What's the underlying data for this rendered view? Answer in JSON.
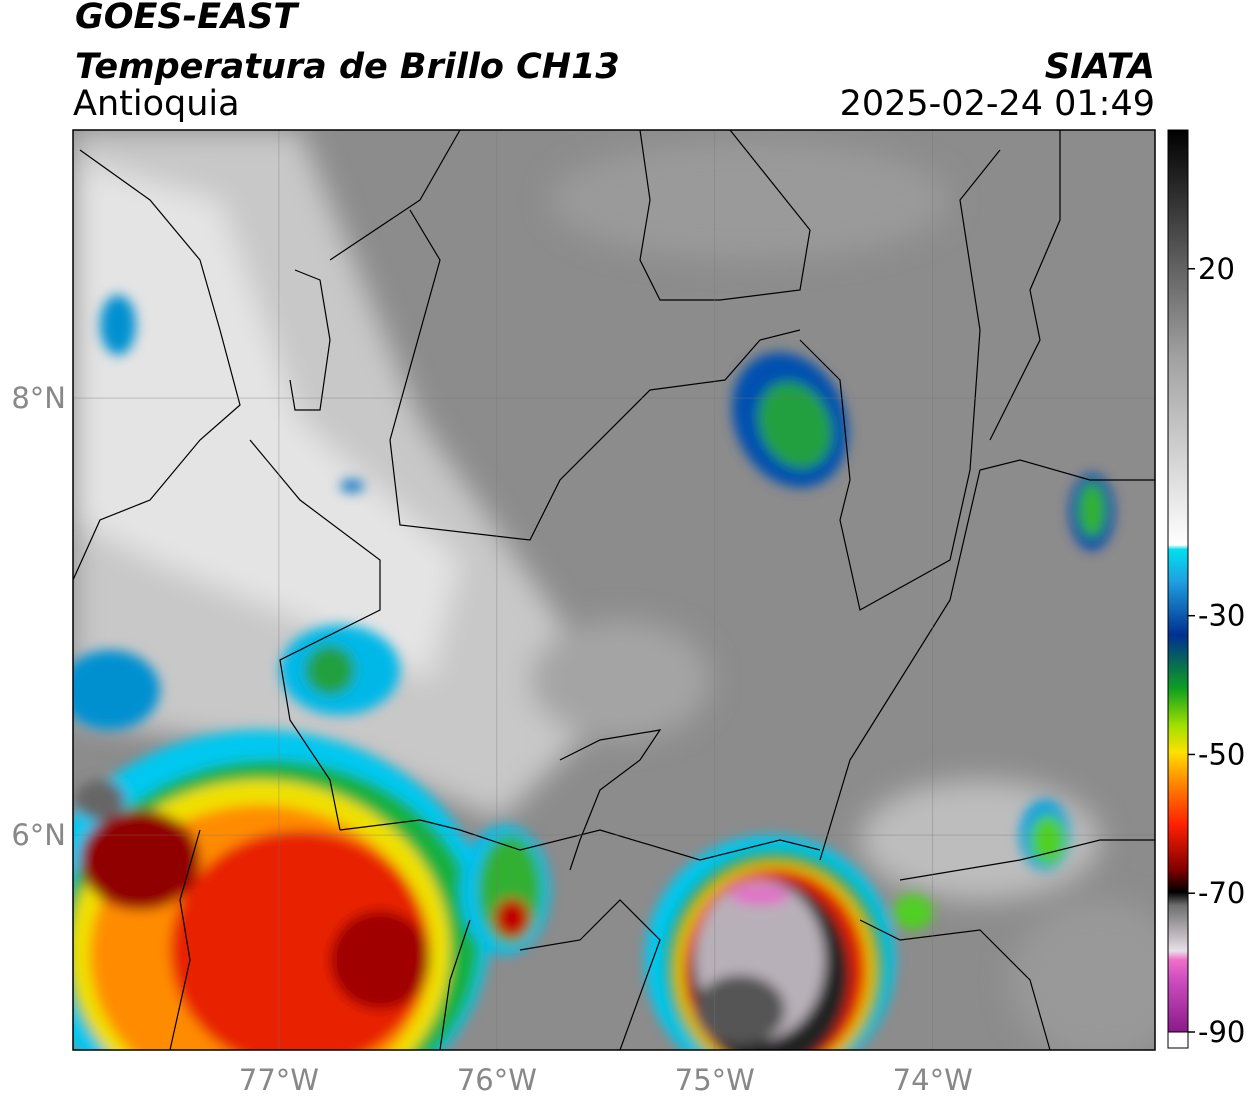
{
  "header": {
    "satellite": "GOES-EAST",
    "product": "Temperatura de Brillo CH13",
    "region": "Antioquia",
    "source": "SIATA",
    "datetime": "2025-02-24 01:49"
  },
  "map": {
    "xlim": [
      -77.945,
      -72.98
    ],
    "ylim": [
      5.016,
      9.227
    ],
    "xticks": [
      {
        "value": -77,
        "label": "77°W"
      },
      {
        "value": -76,
        "label": "76°W"
      },
      {
        "value": -75,
        "label": "75°W"
      },
      {
        "value": -74,
        "label": "74°W"
      }
    ],
    "yticks": [
      {
        "value": 8,
        "label": "8°N"
      },
      {
        "value": 6,
        "label": "6°N"
      }
    ]
  },
  "colorbar": {
    "lim": [
      -90,
      40
    ],
    "ticks": [
      20,
      -30,
      -50,
      -70,
      -90
    ]
  }
}
